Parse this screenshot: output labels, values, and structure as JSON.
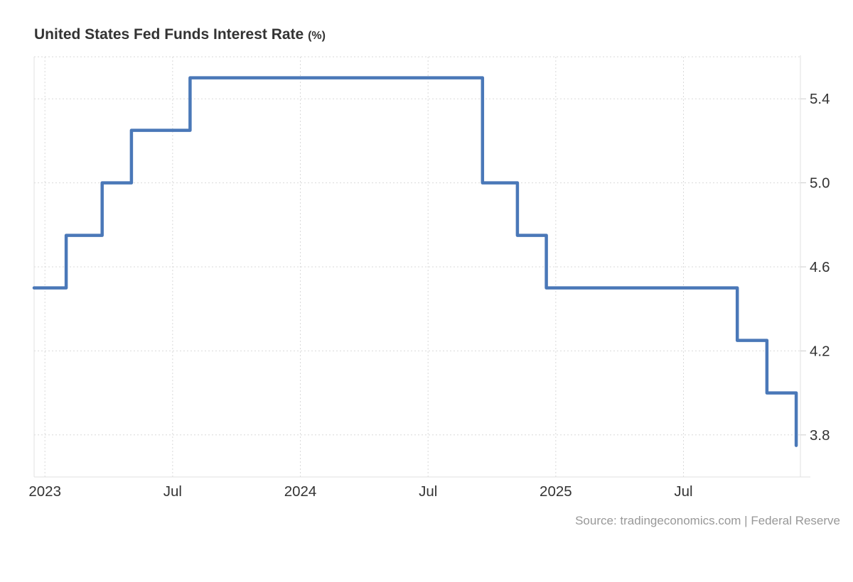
{
  "header": {
    "title": "United States Fed Funds Interest Rate",
    "unit": "(%)"
  },
  "footer": {
    "source": "Source: tradingeconomics.com | Federal Reserve"
  },
  "colors": {
    "line": "#4a78b8",
    "grid": "#d9d9d9",
    "axis": "#e0e0e0",
    "tick": "#cccccc",
    "text": "#333333",
    "source_text": "#989898",
    "background": "#ffffff"
  },
  "chart_data": {
    "type": "line",
    "step_style": "step-after",
    "title": "United States Fed Funds Interest Rate (%)",
    "xlabel": "",
    "ylabel": "",
    "ylim": [
      3.6,
      5.6
    ],
    "grid": "dotted",
    "legend": "none",
    "x_range": {
      "start": "2022-12-16",
      "end": "2025-12-16"
    },
    "y_ticks": [
      {
        "value": 5.4,
        "label": "5.4"
      },
      {
        "value": 5.0,
        "label": "5.0"
      },
      {
        "value": 4.6,
        "label": "4.6"
      },
      {
        "value": 4.2,
        "label": "4.2"
      },
      {
        "value": 3.8,
        "label": "3.8"
      }
    ],
    "x_ticks": [
      {
        "date": "2023-01-01",
        "label": "2023"
      },
      {
        "date": "2023-07-01",
        "label": "Jul"
      },
      {
        "date": "2024-01-01",
        "label": "2024"
      },
      {
        "date": "2024-07-01",
        "label": "Jul"
      },
      {
        "date": "2025-01-01",
        "label": "2025"
      },
      {
        "date": "2025-07-01",
        "label": "Jul"
      }
    ],
    "series": [
      {
        "name": "Fed Funds Interest Rate",
        "unit": "%",
        "points": [
          {
            "date": "2022-12-16",
            "value": 4.5
          },
          {
            "date": "2023-02-01",
            "value": 4.75
          },
          {
            "date": "2023-03-22",
            "value": 5.0
          },
          {
            "date": "2023-05-03",
            "value": 5.25
          },
          {
            "date": "2023-07-26",
            "value": 5.5
          },
          {
            "date": "2024-09-18",
            "value": 5.0
          },
          {
            "date": "2024-11-07",
            "value": 4.75
          },
          {
            "date": "2024-12-18",
            "value": 4.5
          },
          {
            "date": "2025-09-17",
            "value": 4.25
          },
          {
            "date": "2025-10-29",
            "value": 4.0
          },
          {
            "date": "2025-12-10",
            "value": 3.75
          }
        ]
      }
    ]
  }
}
